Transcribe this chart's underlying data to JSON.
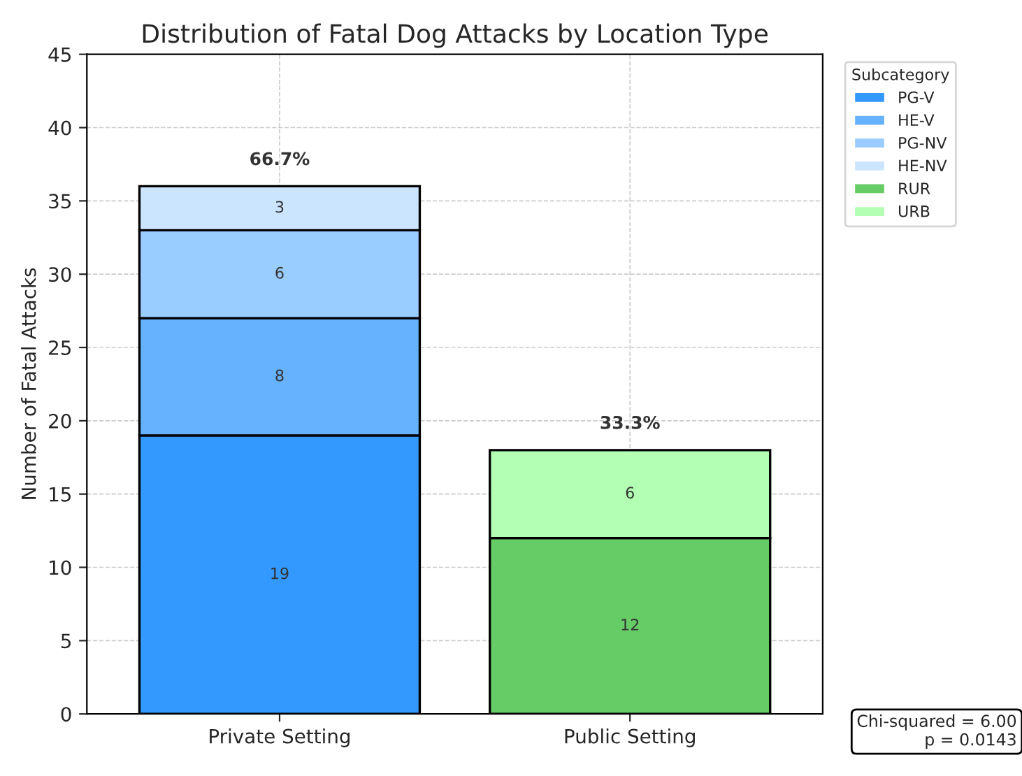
{
  "chart_data": {
    "type": "bar",
    "title": "Distribution of Fatal Dog Attacks by Location Type",
    "ylabel": "Number of Fatal Attacks",
    "legend_title": "Subcategory",
    "categories": [
      "Private Setting",
      "Public Setting"
    ],
    "stacked": true,
    "data_labels": true,
    "series": [
      {
        "name": "PG-V",
        "color": "#3399ff",
        "values": [
          19,
          null
        ]
      },
      {
        "name": "HE-V",
        "color": "#66b2ff",
        "values": [
          8,
          null
        ]
      },
      {
        "name": "PG-NV",
        "color": "#99ccff",
        "values": [
          6,
          null
        ]
      },
      {
        "name": "HE-NV",
        "color": "#cce5ff",
        "values": [
          3,
          null
        ]
      },
      {
        "name": "RUR",
        "color": "#66cc66",
        "values": [
          null,
          12
        ]
      },
      {
        "name": "URB",
        "color": "#b3ffb3",
        "values": [
          null,
          6
        ]
      }
    ],
    "ylim": [
      0,
      45
    ],
    "yticks": [
      0,
      5,
      10,
      15,
      20,
      25,
      30,
      35,
      40,
      45
    ],
    "grid": true,
    "legend": "top right",
    "annotations": [
      {
        "text": "66.7%",
        "x": "Private Setting",
        "y": 36
      },
      {
        "text": "33.3%",
        "x": "Public Setting",
        "y": 18
      },
      "Chi-squared = 6.00\np = 0.0143"
    ]
  }
}
